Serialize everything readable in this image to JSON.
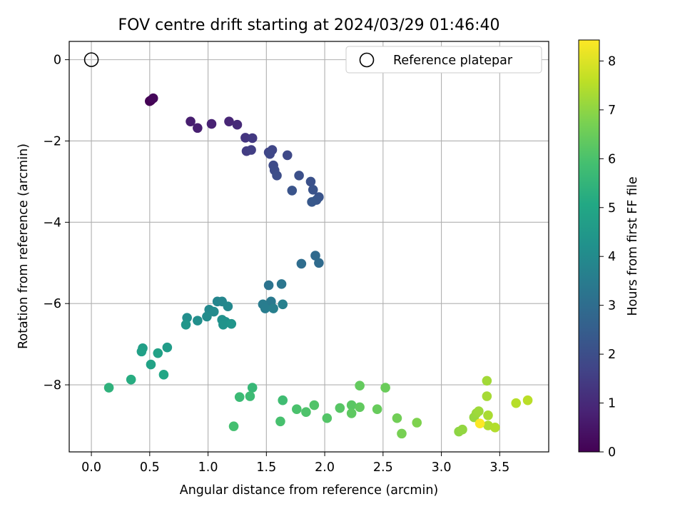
{
  "chart_data": {
    "type": "scatter",
    "title": "FOV centre drift starting at 2024/03/29 01:46:40",
    "xlabel": "Angular distance from reference (arcmin)",
    "ylabel": "Rotation from reference (arcmin)",
    "xlim": [
      -0.19,
      3.92
    ],
    "ylim": [
      -9.65,
      0.45
    ],
    "x_ticks": [
      "0.0",
      "0.5",
      "1.0",
      "1.5",
      "2.0",
      "2.5",
      "3.0",
      "3.5"
    ],
    "y_ticks": [
      "0",
      "−2",
      "−4",
      "−6",
      "−8"
    ],
    "grid": true,
    "legend": {
      "position": "top-right",
      "entries": [
        "Reference platepar"
      ]
    },
    "reference": {
      "name": "Reference platepar",
      "x": 0.0,
      "y": 0.0
    },
    "colorbar": {
      "label": "Hours from first FF file",
      "range": [
        0,
        8.43
      ],
      "ticks": [
        "0",
        "1",
        "2",
        "3",
        "4",
        "5",
        "6",
        "7",
        "8"
      ],
      "colormap": "viridis"
    },
    "points": [
      [
        0.51,
        -1.0,
        0.05
      ],
      [
        0.5,
        -1.02,
        0.0
      ],
      [
        0.53,
        -0.95,
        0.15
      ],
      [
        0.85,
        -1.52,
        0.7
      ],
      [
        0.91,
        -1.68,
        0.75
      ],
      [
        1.03,
        -1.58,
        0.8
      ],
      [
        1.18,
        -1.52,
        0.9
      ],
      [
        1.25,
        -1.6,
        1.0
      ],
      [
        1.32,
        -1.92,
        1.3
      ],
      [
        1.38,
        -1.93,
        1.4
      ],
      [
        1.33,
        -2.25,
        1.5
      ],
      [
        1.37,
        -2.22,
        1.55
      ],
      [
        1.52,
        -2.28,
        1.7
      ],
      [
        1.55,
        -2.22,
        1.75
      ],
      [
        1.53,
        -2.32,
        1.8
      ],
      [
        1.68,
        -2.35,
        1.85
      ],
      [
        1.56,
        -2.6,
        1.9
      ],
      [
        1.57,
        -2.72,
        1.95
      ],
      [
        1.59,
        -2.85,
        2.0
      ],
      [
        1.78,
        -2.85,
        2.05
      ],
      [
        1.88,
        -3.0,
        2.1
      ],
      [
        1.9,
        -3.2,
        2.15
      ],
      [
        1.72,
        -3.22,
        2.2
      ],
      [
        1.95,
        -3.38,
        2.2
      ],
      [
        1.93,
        -3.45,
        2.25
      ],
      [
        1.89,
        -3.5,
        2.3
      ],
      [
        1.92,
        -4.82,
        2.9
      ],
      [
        1.95,
        -5.0,
        2.95
      ],
      [
        1.8,
        -5.02,
        3.0
      ],
      [
        1.52,
        -5.55,
        3.2
      ],
      [
        1.63,
        -5.52,
        3.3
      ],
      [
        1.54,
        -5.95,
        3.4
      ],
      [
        1.47,
        -6.02,
        3.5
      ],
      [
        1.49,
        -6.12,
        3.55
      ],
      [
        1.56,
        -6.12,
        3.6
      ],
      [
        1.64,
        -6.02,
        3.65
      ],
      [
        1.08,
        -5.95,
        3.8
      ],
      [
        1.12,
        -5.95,
        3.85
      ],
      [
        1.17,
        -6.07,
        3.9
      ],
      [
        1.01,
        -6.15,
        3.95
      ],
      [
        1.05,
        -6.2,
        4.0
      ],
      [
        0.99,
        -6.32,
        4.05
      ],
      [
        0.82,
        -6.35,
        4.1
      ],
      [
        0.91,
        -6.42,
        4.15
      ],
      [
        1.12,
        -6.4,
        4.2
      ],
      [
        1.15,
        -6.45,
        4.25
      ],
      [
        1.13,
        -6.52,
        4.3
      ],
      [
        1.2,
        -6.5,
        4.35
      ],
      [
        0.81,
        -6.52,
        4.4
      ],
      [
        0.65,
        -7.08,
        4.6
      ],
      [
        0.44,
        -7.1,
        4.7
      ],
      [
        0.43,
        -7.18,
        4.75
      ],
      [
        0.57,
        -7.22,
        4.8
      ],
      [
        0.51,
        -7.5,
        4.85
      ],
      [
        0.62,
        -7.75,
        5.0
      ],
      [
        0.34,
        -7.87,
        5.2
      ],
      [
        0.15,
        -8.07,
        5.4
      ],
      [
        1.38,
        -8.07,
        5.6
      ],
      [
        1.27,
        -8.3,
        5.7
      ],
      [
        1.36,
        -8.28,
        5.75
      ],
      [
        1.64,
        -8.38,
        5.8
      ],
      [
        1.22,
        -9.02,
        5.9
      ],
      [
        1.62,
        -8.9,
        5.95
      ],
      [
        1.76,
        -8.6,
        6.0
      ],
      [
        1.84,
        -8.67,
        6.05
      ],
      [
        1.91,
        -8.5,
        6.1
      ],
      [
        2.02,
        -8.82,
        6.15
      ],
      [
        2.13,
        -8.57,
        6.2
      ],
      [
        2.23,
        -8.5,
        6.25
      ],
      [
        2.23,
        -8.7,
        6.3
      ],
      [
        2.3,
        -8.55,
        6.35
      ],
      [
        2.3,
        -8.02,
        6.4
      ],
      [
        2.45,
        -8.6,
        6.45
      ],
      [
        2.52,
        -8.07,
        6.5
      ],
      [
        2.62,
        -8.82,
        6.6
      ],
      [
        2.66,
        -9.2,
        6.7
      ],
      [
        2.79,
        -8.93,
        6.8
      ],
      [
        3.15,
        -9.15,
        7.0
      ],
      [
        3.18,
        -9.1,
        7.05
      ],
      [
        3.28,
        -8.8,
        7.1
      ],
      [
        3.3,
        -8.7,
        7.15
      ],
      [
        3.32,
        -8.65,
        7.2
      ],
      [
        3.39,
        -7.9,
        7.25
      ],
      [
        3.39,
        -8.28,
        7.3
      ],
      [
        3.4,
        -8.75,
        7.35
      ],
      [
        3.4,
        -9.0,
        7.4
      ],
      [
        3.46,
        -9.05,
        7.45
      ],
      [
        3.64,
        -8.45,
        7.5
      ],
      [
        3.74,
        -8.38,
        7.55
      ],
      [
        3.33,
        -8.95,
        8.4
      ]
    ]
  }
}
